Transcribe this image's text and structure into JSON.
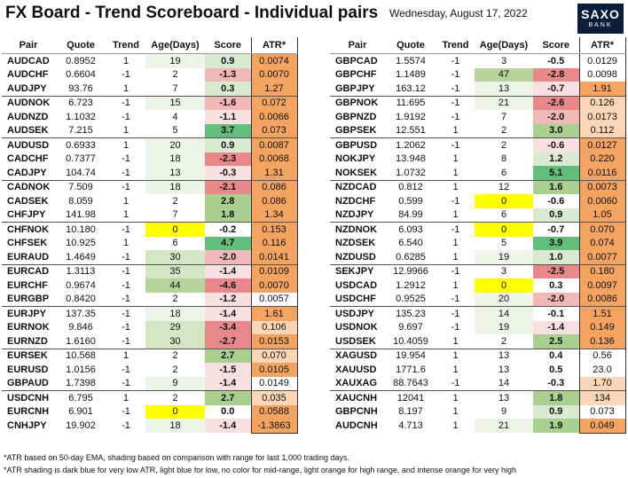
{
  "header": {
    "title": "FX Board - Trend Scoreboard - Individual pairs",
    "date": "Wednesday, August 17, 2022",
    "logo_line1": "SAXO",
    "logo_line2": "BANK"
  },
  "columns": [
    "Pair",
    "Quote",
    "Trend",
    "Age(Days)",
    "Score",
    "ATR*"
  ],
  "colors": {
    "age_green_light": "#eef4e7",
    "age_green_mid": "#d5e6c5",
    "age_green_dark": "#b7d39c",
    "age_yellow": "#ffff00",
    "score_green_light": "#d9ead0",
    "score_green_mid": "#a9d08e",
    "score_green_dark": "#63be7b",
    "score_red_light": "#f8e0e0",
    "score_red_mid": "#f1b8b8",
    "score_red_dark": "#e8888a",
    "atr_light_orange": "#fbd5b5",
    "atr_intense_orange": "#f4a460"
  },
  "left_table": {
    "rows": [
      {
        "pair": "AUDCAD",
        "quote": "0.8952",
        "trend": "1",
        "age": "19",
        "score": "0.9",
        "atr": "0.0074",
        "age_shade": "green_light",
        "score_shade": "green_light",
        "atr_shade": "intense_orange",
        "group_start": false
      },
      {
        "pair": "AUDCHF",
        "quote": "0.6604",
        "trend": "-1",
        "age": "2",
        "score": "-1.3",
        "atr": "0.0070",
        "age_shade": "none",
        "score_shade": "red_mid",
        "atr_shade": "intense_orange",
        "group_start": false
      },
      {
        "pair": "AUDJPY",
        "quote": "93.76",
        "trend": "1",
        "age": "7",
        "score": "0.3",
        "atr": "1.27",
        "age_shade": "none",
        "score_shade": "green_light",
        "atr_shade": "intense_orange",
        "group_start": false
      },
      {
        "pair": "AUDNOK",
        "quote": "6.723",
        "trend": "-1",
        "age": "15",
        "score": "-1.6",
        "atr": "0.072",
        "age_shade": "green_light",
        "score_shade": "red_mid",
        "atr_shade": "intense_orange",
        "group_start": true
      },
      {
        "pair": "AUDNZD",
        "quote": "1.1032",
        "trend": "-1",
        "age": "4",
        "score": "-1.1",
        "atr": "0.0066",
        "age_shade": "none",
        "score_shade": "red_light",
        "atr_shade": "intense_orange",
        "group_start": false
      },
      {
        "pair": "AUDSEK",
        "quote": "7.215",
        "trend": "1",
        "age": "5",
        "score": "3.7",
        "atr": "0.073",
        "age_shade": "none",
        "score_shade": "green_dark",
        "atr_shade": "intense_orange",
        "group_start": false
      },
      {
        "pair": "AUDUSD",
        "quote": "0.6933",
        "trend": "1",
        "age": "20",
        "score": "0.9",
        "atr": "0.0087",
        "age_shade": "green_light",
        "score_shade": "green_light",
        "atr_shade": "intense_orange",
        "group_start": true
      },
      {
        "pair": "CADCHF",
        "quote": "0.7377",
        "trend": "-1",
        "age": "18",
        "score": "-2.3",
        "atr": "0.0068",
        "age_shade": "green_light",
        "score_shade": "red_dark",
        "atr_shade": "intense_orange",
        "group_start": false
      },
      {
        "pair": "CADJPY",
        "quote": "104.74",
        "trend": "-1",
        "age": "13",
        "score": "-0.3",
        "atr": "1.31",
        "age_shade": "green_light",
        "score_shade": "red_light",
        "atr_shade": "intense_orange",
        "group_start": false
      },
      {
        "pair": "CADNOK",
        "quote": "7.509",
        "trend": "-1",
        "age": "18",
        "score": "-2.1",
        "atr": "0.086",
        "age_shade": "green_light",
        "score_shade": "red_dark",
        "atr_shade": "intense_orange",
        "group_start": true
      },
      {
        "pair": "CADSEK",
        "quote": "8.059",
        "trend": "1",
        "age": "2",
        "score": "2.8",
        "atr": "0.086",
        "age_shade": "none",
        "score_shade": "green_mid",
        "atr_shade": "intense_orange",
        "group_start": false
      },
      {
        "pair": "CHFJPY",
        "quote": "141.98",
        "trend": "1",
        "age": "7",
        "score": "1.8",
        "atr": "1.34",
        "age_shade": "none",
        "score_shade": "green_mid",
        "atr_shade": "intense_orange",
        "group_start": false
      },
      {
        "pair": "CHFNOK",
        "quote": "10.180",
        "trend": "-1",
        "age": "0",
        "score": "-0.2",
        "atr": "0.153",
        "age_shade": "yellow",
        "score_shade": "none",
        "atr_shade": "intense_orange",
        "group_start": true
      },
      {
        "pair": "CHFSEK",
        "quote": "10.925",
        "trend": "1",
        "age": "6",
        "score": "4.7",
        "atr": "0.116",
        "age_shade": "none",
        "score_shade": "green_dark",
        "atr_shade": "intense_orange",
        "group_start": false
      },
      {
        "pair": "EURAUD",
        "quote": "1.4649",
        "trend": "-1",
        "age": "30",
        "score": "-2.0",
        "atr": "0.0141",
        "age_shade": "green_mid",
        "score_shade": "red_mid",
        "atr_shade": "intense_orange",
        "group_start": false
      },
      {
        "pair": "EURCAD",
        "quote": "1.3113",
        "trend": "-1",
        "age": "35",
        "score": "-1.4",
        "atr": "0.0109",
        "age_shade": "green_mid",
        "score_shade": "red_light",
        "atr_shade": "intense_orange",
        "group_start": true
      },
      {
        "pair": "EURCHF",
        "quote": "0.9674",
        "trend": "-1",
        "age": "44",
        "score": "-4.6",
        "atr": "0.0070",
        "age_shade": "green_dark",
        "score_shade": "red_dark",
        "atr_shade": "intense_orange",
        "group_start": false
      },
      {
        "pair": "EURGBP",
        "quote": "0.8420",
        "trend": "-1",
        "age": "2",
        "score": "-1.2",
        "atr": "0.0057",
        "age_shade": "none",
        "score_shade": "red_light",
        "atr_shade": "none",
        "group_start": false
      },
      {
        "pair": "EURJPY",
        "quote": "137.35",
        "trend": "-1",
        "age": "18",
        "score": "-1.4",
        "atr": "1.61",
        "age_shade": "green_light",
        "score_shade": "red_light",
        "atr_shade": "intense_orange",
        "group_start": true
      },
      {
        "pair": "EURNOK",
        "quote": "9.846",
        "trend": "-1",
        "age": "29",
        "score": "-3.4",
        "atr": "0.106",
        "age_shade": "green_mid",
        "score_shade": "red_dark",
        "atr_shade": "light_orange",
        "group_start": false
      },
      {
        "pair": "EURNZD",
        "quote": "1.6160",
        "trend": "-1",
        "age": "30",
        "score": "-2.7",
        "atr": "0.0153",
        "age_shade": "green_mid",
        "score_shade": "red_dark",
        "atr_shade": "intense_orange",
        "group_start": false
      },
      {
        "pair": "EURSEK",
        "quote": "10.568",
        "trend": "1",
        "age": "2",
        "score": "2.7",
        "atr": "0.070",
        "age_shade": "none",
        "score_shade": "green_mid",
        "atr_shade": "light_orange",
        "group_start": true
      },
      {
        "pair": "EURUSD",
        "quote": "1.0156",
        "trend": "-1",
        "age": "2",
        "score": "-1.5",
        "atr": "0.0105",
        "age_shade": "none",
        "score_shade": "red_light",
        "atr_shade": "intense_orange",
        "group_start": false
      },
      {
        "pair": "GBPAUD",
        "quote": "1.7398",
        "trend": "-1",
        "age": "9",
        "score": "-1.4",
        "atr": "0.0149",
        "age_shade": "green_light",
        "score_shade": "red_light",
        "atr_shade": "none",
        "group_start": false
      },
      {
        "pair": "USDCNH",
        "quote": "6.795",
        "trend": "1",
        "age": "2",
        "score": "2.7",
        "atr": "0.035",
        "age_shade": "none",
        "score_shade": "green_mid",
        "atr_shade": "light_orange",
        "group_start": true
      },
      {
        "pair": "EURCNH",
        "quote": "6.901",
        "trend": "-1",
        "age": "0",
        "score": "0.0",
        "atr": "0.0588",
        "age_shade": "yellow",
        "score_shade": "none",
        "atr_shade": "intense_orange",
        "group_start": false
      },
      {
        "pair": "CNHJPY",
        "quote": "19.902",
        "trend": "-1",
        "age": "18",
        "score": "-1.4",
        "atr": "-1.3863",
        "age_shade": "green_light",
        "score_shade": "red_light",
        "atr_shade": "intense_orange",
        "group_start": false
      }
    ]
  },
  "right_table": {
    "rows": [
      {
        "pair": "GBPCAD",
        "quote": "1.5574",
        "trend": "-1",
        "age": "3",
        "score": "-0.5",
        "atr": "0.0129",
        "age_shade": "none",
        "score_shade": "none",
        "atr_shade": "none",
        "group_start": false
      },
      {
        "pair": "GBPCHF",
        "quote": "1.1489",
        "trend": "-1",
        "age": "47",
        "score": "-2.8",
        "atr": "0.0098",
        "age_shade": "green_dark",
        "score_shade": "red_dark",
        "atr_shade": "none",
        "group_start": false
      },
      {
        "pair": "GBPJPY",
        "quote": "163.12",
        "trend": "-1",
        "age": "13",
        "score": "-0.7",
        "atr": "1.91",
        "age_shade": "green_light",
        "score_shade": "red_light",
        "atr_shade": "intense_orange",
        "group_start": false
      },
      {
        "pair": "GBPNOK",
        "quote": "11.695",
        "trend": "-1",
        "age": "21",
        "score": "-2.6",
        "atr": "0.126",
        "age_shade": "green_light",
        "score_shade": "red_dark",
        "atr_shade": "light_orange",
        "group_start": true
      },
      {
        "pair": "GBPNZD",
        "quote": "1.9192",
        "trend": "-1",
        "age": "7",
        "score": "-2.0",
        "atr": "0.0173",
        "age_shade": "none",
        "score_shade": "red_mid",
        "atr_shade": "light_orange",
        "group_start": false
      },
      {
        "pair": "GBPSEK",
        "quote": "12.551",
        "trend": "1",
        "age": "2",
        "score": "3.0",
        "atr": "0.112",
        "age_shade": "none",
        "score_shade": "green_mid",
        "atr_shade": "light_orange",
        "group_start": false
      },
      {
        "pair": "GBPUSD",
        "quote": "1.2062",
        "trend": "-1",
        "age": "2",
        "score": "-0.6",
        "atr": "0.0127",
        "age_shade": "none",
        "score_shade": "red_light",
        "atr_shade": "intense_orange",
        "group_start": true
      },
      {
        "pair": "NOKJPY",
        "quote": "13.948",
        "trend": "1",
        "age": "8",
        "score": "1.2",
        "atr": "0.220",
        "age_shade": "none",
        "score_shade": "green_light",
        "atr_shade": "intense_orange",
        "group_start": false
      },
      {
        "pair": "NOKSEK",
        "quote": "1.0732",
        "trend": "1",
        "age": "6",
        "score": "5.1",
        "atr": "0.0116",
        "age_shade": "none",
        "score_shade": "green_dark",
        "atr_shade": "intense_orange",
        "group_start": false
      },
      {
        "pair": "NZDCAD",
        "quote": "0.812",
        "trend": "1",
        "age": "12",
        "score": "1.6",
        "atr": "0.0073",
        "age_shade": "none",
        "score_shade": "green_mid",
        "atr_shade": "intense_orange",
        "group_start": true
      },
      {
        "pair": "NZDCHF",
        "quote": "0.599",
        "trend": "-1",
        "age": "0",
        "score": "-0.6",
        "atr": "0.0060",
        "age_shade": "yellow",
        "score_shade": "none",
        "atr_shade": "intense_orange",
        "group_start": false
      },
      {
        "pair": "NZDJPY",
        "quote": "84.99",
        "trend": "1",
        "age": "6",
        "score": "0.9",
        "atr": "1.05",
        "age_shade": "none",
        "score_shade": "green_light",
        "atr_shade": "intense_orange",
        "group_start": false
      },
      {
        "pair": "NZDNOK",
        "quote": "6.093",
        "trend": "-1",
        "age": "0",
        "score": "-0.7",
        "atr": "0.070",
        "age_shade": "yellow",
        "score_shade": "none",
        "atr_shade": "intense_orange",
        "group_start": true
      },
      {
        "pair": "NZDSEK",
        "quote": "6.540",
        "trend": "1",
        "age": "5",
        "score": "3.9",
        "atr": "0.074",
        "age_shade": "none",
        "score_shade": "green_dark",
        "atr_shade": "intense_orange",
        "group_start": false
      },
      {
        "pair": "NZDUSD",
        "quote": "0.6285",
        "trend": "1",
        "age": "19",
        "score": "1.0",
        "atr": "0.0077",
        "age_shade": "green_light",
        "score_shade": "green_light",
        "atr_shade": "intense_orange",
        "group_start": false
      },
      {
        "pair": "SEKJPY",
        "quote": "12.9966",
        "trend": "-1",
        "age": "3",
        "score": "-2.5",
        "atr": "0.180",
        "age_shade": "none",
        "score_shade": "red_dark",
        "atr_shade": "intense_orange",
        "group_start": true
      },
      {
        "pair": "USDCAD",
        "quote": "1.2912",
        "trend": "1",
        "age": "0",
        "score": "0.3",
        "atr": "0.0097",
        "age_shade": "yellow",
        "score_shade": "none",
        "atr_shade": "intense_orange",
        "group_start": false
      },
      {
        "pair": "USDCHF",
        "quote": "0.9525",
        "trend": "-1",
        "age": "20",
        "score": "-2.0",
        "atr": "0.0086",
        "age_shade": "green_light",
        "score_shade": "red_mid",
        "atr_shade": "intense_orange",
        "group_start": false
      },
      {
        "pair": "USDJPY",
        "quote": "135.23",
        "trend": "-1",
        "age": "14",
        "score": "-0.1",
        "atr": "1.51",
        "age_shade": "green_light",
        "score_shade": "none",
        "atr_shade": "intense_orange",
        "group_start": true
      },
      {
        "pair": "USDNOK",
        "quote": "9.697",
        "trend": "-1",
        "age": "19",
        "score": "-1.4",
        "atr": "0.149",
        "age_shade": "green_light",
        "score_shade": "red_light",
        "atr_shade": "intense_orange",
        "group_start": false
      },
      {
        "pair": "USDSEK",
        "quote": "10.4059",
        "trend": "1",
        "age": "2",
        "score": "2.5",
        "atr": "0.136",
        "age_shade": "none",
        "score_shade": "green_mid",
        "atr_shade": "intense_orange",
        "group_start": false
      },
      {
        "pair": "XAGUSD",
        "quote": "19.954",
        "trend": "1",
        "age": "13",
        "score": "0.4",
        "atr": "0.56",
        "age_shade": "none",
        "score_shade": "none",
        "atr_shade": "none",
        "group_start": true
      },
      {
        "pair": "XAUUSD",
        "quote": "1771.6",
        "trend": "1",
        "age": "13",
        "score": "0.5",
        "atr": "23.0",
        "age_shade": "none",
        "score_shade": "none",
        "atr_shade": "none",
        "group_start": false
      },
      {
        "pair": "XAUXAG",
        "quote": "88.7643",
        "trend": "-1",
        "age": "14",
        "score": "-0.3",
        "atr": "1.70",
        "age_shade": "none",
        "score_shade": "none",
        "atr_shade": "light_orange",
        "group_start": false
      },
      {
        "pair": "XAUCNH",
        "quote": "12041",
        "trend": "1",
        "age": "13",
        "score": "1.8",
        "atr": "134",
        "age_shade": "none",
        "score_shade": "green_mid",
        "atr_shade": "light_orange",
        "group_start": true
      },
      {
        "pair": "GBPCNH",
        "quote": "8.197",
        "trend": "1",
        "age": "9",
        "score": "0.9",
        "atr": "0.073",
        "age_shade": "none",
        "score_shade": "green_light",
        "atr_shade": "none",
        "group_start": false
      },
      {
        "pair": "AUDCNH",
        "quote": "4.713",
        "trend": "1",
        "age": "21",
        "score": "1.9",
        "atr": "0.049",
        "age_shade": "green_light",
        "score_shade": "green_mid",
        "atr_shade": "intense_orange",
        "group_start": false
      }
    ]
  },
  "footnotes": [
    "*ATR based on 50-day EMA, shading based on comparison with range for last 1,000 trading days.",
    "*ATR shading is dark blue for very low ATR, light blue for low, no color for mid-range, light orange for high range, and intense orange for very high"
  ]
}
